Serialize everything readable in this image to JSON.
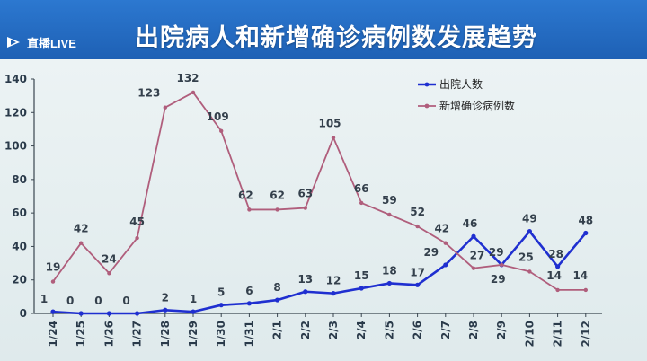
{
  "header": {
    "title": "出院病人和新增确诊病例数发展趋势",
    "live_label": "直播LIVE"
  },
  "colors": {
    "discharged": "#1f2fd0",
    "new_confirmed": "#b05e7c",
    "banner": "#1f63b8"
  },
  "chart_data": {
    "type": "line",
    "title": "出院病人和新增确诊病例数发展趋势",
    "xlabel": "",
    "ylabel": "",
    "categories": [
      "1/24",
      "1/25",
      "1/26",
      "1/27",
      "1/28",
      "1/29",
      "1/30",
      "1/31",
      "2/1",
      "2/2",
      "2/3",
      "2/4",
      "2/5",
      "2/6",
      "2/7",
      "2/8",
      "2/9",
      "2/10",
      "2/11",
      "2/12"
    ],
    "ylim": [
      0,
      140
    ],
    "yticks": [
      0,
      20,
      40,
      60,
      80,
      100,
      120,
      140
    ],
    "grid": false,
    "legend_position": "top-right",
    "series": [
      {
        "name": "出院人数",
        "color": "#1f2fd0",
        "values": [
          1,
          0,
          0,
          0,
          2,
          1,
          5,
          6,
          8,
          13,
          12,
          15,
          18,
          17,
          29,
          46,
          29,
          49,
          28,
          48
        ]
      },
      {
        "name": "新增确诊病例数",
        "color": "#b05e7c",
        "values": [
          19,
          42,
          24,
          45,
          123,
          132,
          109,
          62,
          62,
          63,
          105,
          66,
          59,
          52,
          42,
          27,
          29,
          25,
          14,
          14
        ]
      }
    ]
  }
}
